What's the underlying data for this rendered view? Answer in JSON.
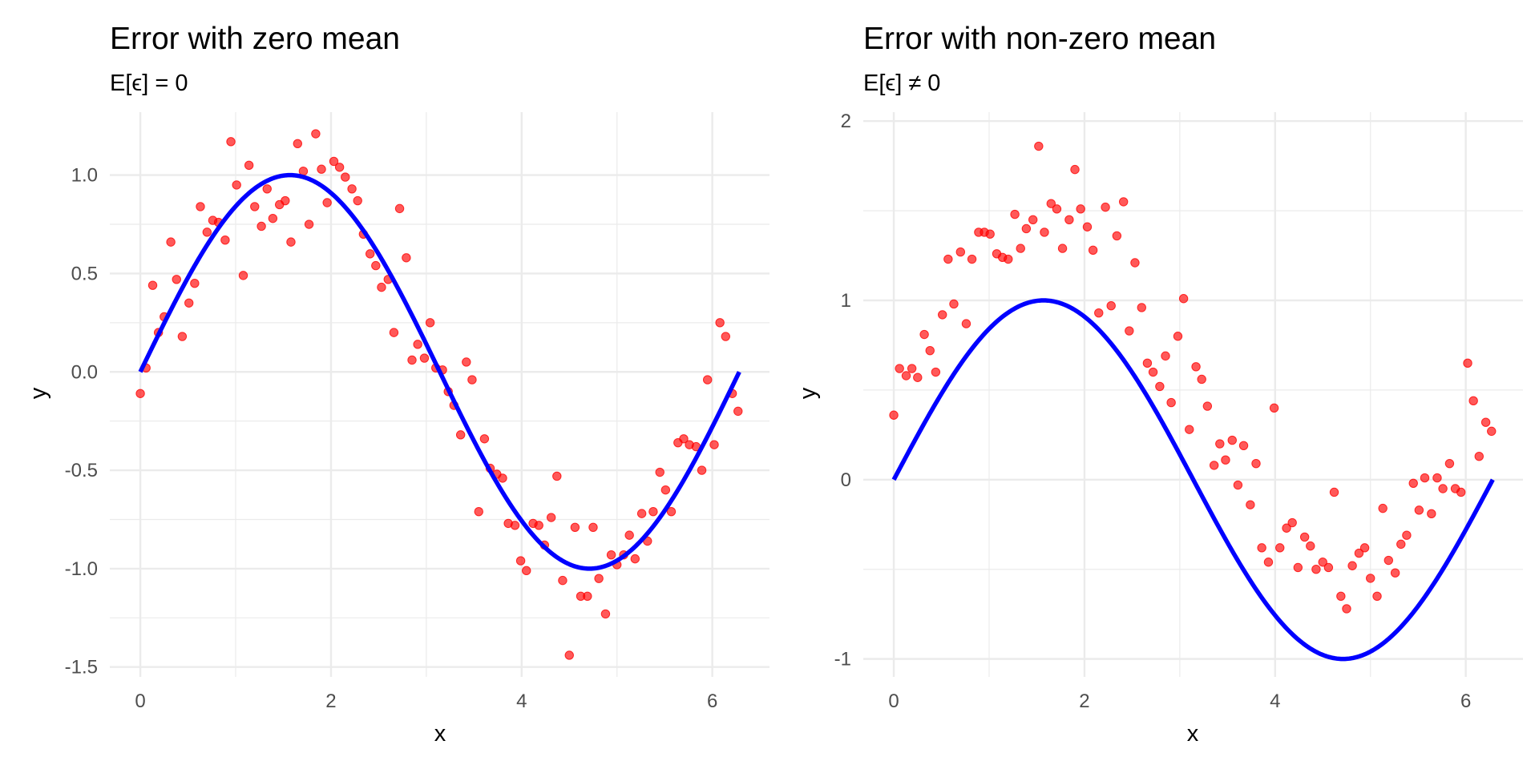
{
  "chart_data": [
    {
      "type": "scatter",
      "title": "Error with zero mean",
      "subtitle": "E[ϵ] = 0",
      "xlabel": "x",
      "ylabel": "y",
      "xlim": [
        -0.32,
        6.6
      ],
      "ylim": [
        -1.55,
        1.32
      ],
      "xticks": [
        0,
        2,
        4,
        6
      ],
      "xtick_labels": [
        "0",
        "2",
        "4",
        "6"
      ],
      "yticks": [
        -1.5,
        -1.0,
        -0.5,
        0.0,
        0.5,
        1.0
      ],
      "ytick_labels": [
        "-1.5",
        "-1.0",
        "-0.5",
        "0.0",
        "0.5",
        "1.0"
      ],
      "grid": true,
      "colors": {
        "points": "#ff0000",
        "line": "#0000ff",
        "grid": "#ebebeb"
      },
      "series": [
        {
          "kind": "scatter",
          "x": [
            0.0,
            0.06,
            0.13,
            0.19,
            0.25,
            0.32,
            0.38,
            0.44,
            0.51,
            0.57,
            0.63,
            0.7,
            0.76,
            0.82,
            0.89,
            0.95,
            1.01,
            1.08,
            1.14,
            1.2,
            1.27,
            1.33,
            1.39,
            1.46,
            1.52,
            1.58,
            1.65,
            1.71,
            1.77,
            1.84,
            1.9,
            1.96,
            2.03,
            2.09,
            2.15,
            2.22,
            2.28,
            2.34,
            2.41,
            2.47,
            2.53,
            2.6,
            2.66,
            2.72,
            2.79,
            2.85,
            2.91,
            2.98,
            3.04,
            3.1,
            3.17,
            3.23,
            3.29,
            3.36,
            3.42,
            3.48,
            3.55,
            3.61,
            3.67,
            3.74,
            3.8,
            3.86,
            3.93,
            3.99,
            4.05,
            4.12,
            4.18,
            4.24,
            4.31,
            4.37,
            4.43,
            4.5,
            4.56,
            4.62,
            4.69,
            4.75,
            4.81,
            4.88,
            4.94,
            5.0,
            5.07,
            5.13,
            5.19,
            5.26,
            5.32,
            5.38,
            5.45,
            5.51,
            5.57,
            5.64,
            5.7,
            5.76,
            5.83,
            5.89,
            5.95,
            6.02,
            6.08,
            6.14,
            6.21,
            6.27
          ],
          "y": [
            -0.11,
            0.02,
            0.44,
            0.2,
            0.28,
            0.66,
            0.47,
            0.18,
            0.35,
            0.45,
            0.84,
            0.71,
            0.77,
            0.76,
            0.67,
            1.17,
            0.95,
            0.49,
            1.05,
            0.84,
            0.74,
            0.93,
            0.78,
            0.85,
            0.87,
            0.66,
            1.16,
            1.02,
            0.75,
            1.21,
            1.03,
            0.86,
            1.07,
            1.04,
            0.99,
            0.93,
            0.87,
            0.7,
            0.6,
            0.54,
            0.43,
            0.47,
            0.2,
            0.83,
            0.58,
            0.06,
            0.14,
            0.07,
            0.25,
            0.02,
            0.01,
            -0.1,
            -0.17,
            -0.32,
            0.05,
            -0.04,
            -0.71,
            -0.34,
            -0.49,
            -0.52,
            -0.54,
            -0.77,
            -0.78,
            -0.96,
            -1.01,
            -0.77,
            -0.78,
            -0.88,
            -0.74,
            -0.53,
            -1.06,
            -1.44,
            -0.79,
            -1.14,
            -1.14,
            -0.79,
            -1.05,
            -1.23,
            -0.93,
            -0.98,
            -0.93,
            -0.83,
            -0.95,
            -0.72,
            -0.86,
            -0.71,
            -0.51,
            -0.6,
            -0.71,
            -0.36,
            -0.34,
            -0.37,
            -0.38,
            -0.5,
            -0.04,
            -0.37,
            0.25,
            0.18,
            -0.11,
            -0.2
          ]
        },
        {
          "kind": "line",
          "function": "sin(x)",
          "x_range": [
            0,
            6.283
          ]
        }
      ]
    },
    {
      "type": "scatter",
      "title": "Error with non-zero mean",
      "subtitle": "E[ϵ] ≠ 0",
      "xlabel": "x",
      "ylabel": "y",
      "xlim": [
        -0.32,
        6.6
      ],
      "ylim": [
        -1.1,
        2.05
      ],
      "xticks": [
        0,
        2,
        4,
        6
      ],
      "xtick_labels": [
        "0",
        "2",
        "4",
        "6"
      ],
      "yticks": [
        -1,
        0,
        1,
        2
      ],
      "ytick_labels": [
        "-1",
        "0",
        "1",
        "2"
      ],
      "grid": true,
      "colors": {
        "points": "#ff0000",
        "line": "#0000ff",
        "grid": "#ebebeb"
      },
      "series": [
        {
          "kind": "scatter",
          "x": [
            0.0,
            0.06,
            0.13,
            0.19,
            0.25,
            0.32,
            0.38,
            0.44,
            0.51,
            0.57,
            0.63,
            0.7,
            0.76,
            0.82,
            0.89,
            0.95,
            1.01,
            1.08,
            1.14,
            1.2,
            1.27,
            1.33,
            1.39,
            1.46,
            1.52,
            1.58,
            1.65,
            1.71,
            1.77,
            1.84,
            1.9,
            1.96,
            2.03,
            2.09,
            2.15,
            2.22,
            2.28,
            2.34,
            2.41,
            2.47,
            2.53,
            2.6,
            2.66,
            2.72,
            2.79,
            2.85,
            2.91,
            2.98,
            3.04,
            3.1,
            3.17,
            3.23,
            3.29,
            3.36,
            3.42,
            3.48,
            3.55,
            3.61,
            3.67,
            3.74,
            3.8,
            3.86,
            3.93,
            3.99,
            4.05,
            4.12,
            4.18,
            4.24,
            4.31,
            4.37,
            4.43,
            4.5,
            4.56,
            4.62,
            4.69,
            4.75,
            4.81,
            4.88,
            4.94,
            5.0,
            5.07,
            5.13,
            5.19,
            5.26,
            5.32,
            5.38,
            5.45,
            5.51,
            5.57,
            5.64,
            5.7,
            5.76,
            5.83,
            5.89,
            5.95,
            6.02,
            6.08,
            6.14,
            6.21,
            6.27
          ],
          "y": [
            0.36,
            0.62,
            0.58,
            0.62,
            0.57,
            0.81,
            0.72,
            0.6,
            0.92,
            1.23,
            0.98,
            1.27,
            0.87,
            1.23,
            1.38,
            1.38,
            1.37,
            1.26,
            1.24,
            1.23,
            1.48,
            1.29,
            1.4,
            1.45,
            1.86,
            1.38,
            1.54,
            1.51,
            1.29,
            1.45,
            1.73,
            1.51,
            1.41,
            1.28,
            0.93,
            1.52,
            0.97,
            1.36,
            1.55,
            0.83,
            1.21,
            0.96,
            0.65,
            0.6,
            0.52,
            0.69,
            0.43,
            0.8,
            1.01,
            0.28,
            0.63,
            0.56,
            0.41,
            0.08,
            0.2,
            0.11,
            0.22,
            -0.03,
            0.19,
            -0.14,
            0.09,
            -0.38,
            -0.46,
            0.4,
            -0.38,
            -0.27,
            -0.24,
            -0.49,
            -0.32,
            -0.37,
            -0.5,
            -0.46,
            -0.49,
            -0.07,
            -0.65,
            -0.72,
            -0.48,
            -0.41,
            -0.38,
            -0.55,
            -0.65,
            -0.16,
            -0.45,
            -0.52,
            -0.36,
            -0.31,
            -0.02,
            -0.17,
            0.01,
            -0.19,
            0.01,
            -0.05,
            0.09,
            -0.05,
            -0.07,
            0.65,
            0.44,
            0.13,
            0.32,
            0.27
          ]
        },
        {
          "kind": "line",
          "function": "sin(x)",
          "x_range": [
            0,
            6.283
          ]
        }
      ]
    }
  ]
}
